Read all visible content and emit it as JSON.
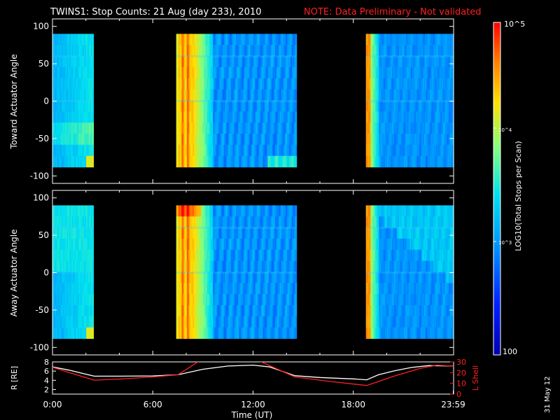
{
  "header": {
    "title": "TWINS1: Stop Counts: 21 Aug (day 233), 2010",
    "note": "NOTE: Data Preliminary - Not validated"
  },
  "colorbar": {
    "label": "LOG10(Total Stops per Scan)",
    "top_label": "10^5",
    "mid_label": "10^4",
    "low_label": "10^3",
    "bottom_label": "100"
  },
  "footer": {
    "date_stamp": "31 May 12"
  },
  "chart_data": [
    {
      "type": "heatmap",
      "ylabel": "Toward Actuator Angle",
      "ylim": [
        -110,
        110
      ],
      "yticks": [
        100,
        50,
        0,
        -50,
        -100
      ],
      "xlim_hours": [
        0,
        24
      ],
      "data_angle_range": [
        -88,
        90
      ],
      "segments_ut_hours": [
        [
          0.0,
          2.45
        ],
        [
          7.4,
          14.6
        ],
        [
          18.75,
          24.0
        ]
      ],
      "intensity_description": "log10 stop counts 2..5"
    },
    {
      "type": "heatmap",
      "ylabel": "Away Actuator Angle",
      "ylim": [
        -110,
        110
      ],
      "yticks": [
        100,
        50,
        0,
        -50,
        -100
      ],
      "xlim_hours": [
        0,
        24
      ],
      "data_angle_range": [
        -88,
        90
      ],
      "segments_ut_hours": [
        [
          0.0,
          2.45
        ],
        [
          7.4,
          14.6
        ],
        [
          18.75,
          24.0
        ]
      ]
    },
    {
      "type": "line",
      "xlabel": "Time (UT)",
      "xtick_labels": [
        "0:00",
        "6:00",
        "12:00",
        "18:00",
        "23:59"
      ],
      "xticks_hours": [
        0,
        6,
        12,
        18,
        23.98
      ],
      "ylabel_left": "R [RE]",
      "ylim_left": [
        1,
        8
      ],
      "yticks_left": [
        2,
        4,
        6,
        8
      ],
      "ylabel_right": "L Shell",
      "ylim_right": [
        0,
        30
      ],
      "yticks_right": [
        0,
        10,
        20,
        30
      ],
      "series": [
        {
          "axis": "left",
          "color": "#ffffff",
          "x": [
            0,
            1,
            2.5,
            4,
            6,
            7.5,
            9,
            10.5,
            12,
            13,
            14.5,
            16,
            18,
            18.8,
            19.5,
            20.5,
            21.5,
            22.5,
            24
          ],
          "y": [
            6.9,
            6.2,
            4.9,
            4.9,
            4.95,
            5.2,
            6.4,
            7.1,
            7.3,
            6.9,
            5.0,
            4.6,
            4.3,
            4.1,
            5.2,
            6.1,
            6.8,
            7.2,
            7.1
          ]
        },
        {
          "axis": "right",
          "color": "#ff2020",
          "x": [
            0,
            1,
            2.5,
            4,
            6,
            7.5,
            8.8,
            12.35,
            14.5,
            16.5,
            18.8,
            20.5,
            22,
            23,
            24
          ],
          "y": [
            25,
            20,
            13,
            14,
            16,
            18,
            31,
            31,
            16,
            12,
            8,
            17,
            24,
            27,
            26
          ]
        }
      ]
    }
  ]
}
